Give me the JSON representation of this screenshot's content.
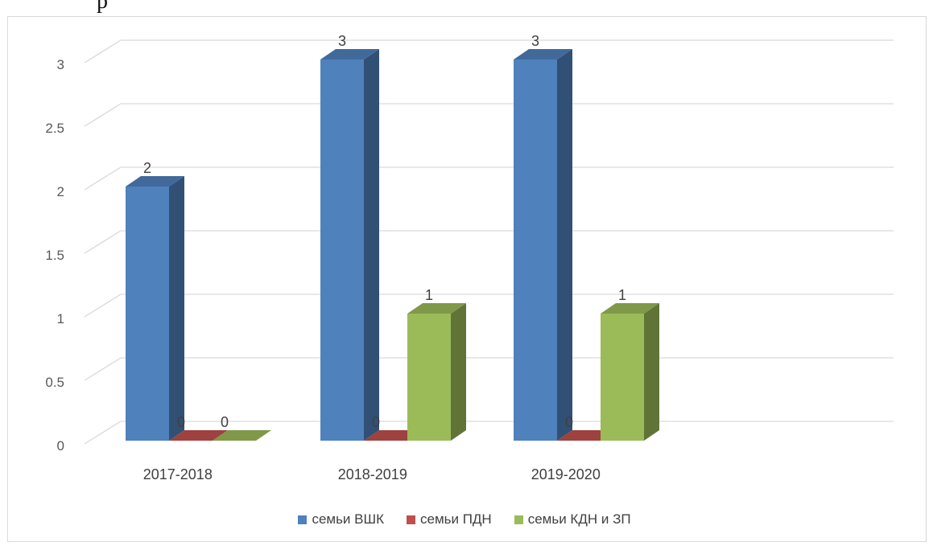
{
  "caption_fragment": "р",
  "chart_data": {
    "type": "bar",
    "categories": [
      "2017-2018",
      "2018-2019",
      "2019-2020"
    ],
    "series": [
      {
        "name": "семьи ВШК",
        "values": [
          2,
          3,
          3
        ],
        "color": "#4f81bd"
      },
      {
        "name": "семьи ПДН",
        "values": [
          0,
          0,
          0
        ],
        "color": "#c0504d"
      },
      {
        "name": "семьи КДН и ЗП",
        "values": [
          0,
          1,
          1
        ],
        "color": "#9bbb59"
      }
    ],
    "ylim": [
      0,
      3
    ],
    "yticks": [
      "0",
      "0.5",
      "1",
      "1.5",
      "2",
      "2.5",
      "3"
    ],
    "grid": true,
    "style": "3d-clustered-column",
    "legend_position": "bottom",
    "title": "",
    "xlabel": "",
    "ylabel": ""
  }
}
